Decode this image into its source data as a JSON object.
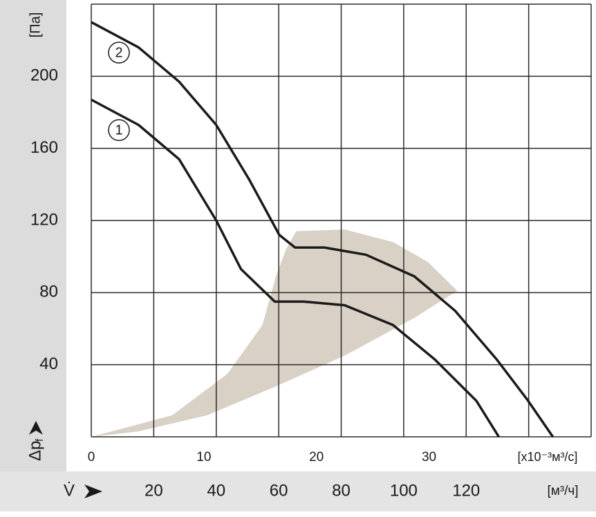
{
  "chart_data": {
    "type": "line",
    "y_label": "[Па]",
    "y_symbol": "Δp",
    "y_symbol_sub": "f",
    "x_label": "[x10⁻³м³/с]",
    "x2_symbol": "V̇",
    "x2_label": "[м³/ч]",
    "xlim": [
      0,
      44.4
    ],
    "xticks": [
      0,
      10,
      20,
      30
    ],
    "x2lim": [
      0,
      160
    ],
    "x2ticks": [
      20,
      40,
      60,
      80,
      100,
      120
    ],
    "x2grid": [
      20,
      40,
      60,
      80,
      100,
      120,
      140
    ],
    "ylim": [
      0,
      240
    ],
    "yticks": [
      40,
      80,
      120,
      160,
      200
    ],
    "grid": true,
    "series": [
      {
        "name": "1",
        "color": "#1a1a1a",
        "x": [
          0,
          4.2,
          7.8,
          11.1,
          13.3,
          16.3,
          18.9,
          22.5,
          26.8,
          30.5,
          34.2,
          36.2
        ],
        "values": [
          187,
          173,
          154,
          120,
          93,
          75,
          75,
          73,
          62,
          43,
          20,
          0
        ]
      },
      {
        "name": "2",
        "color": "#1a1a1a",
        "x": [
          0,
          4.2,
          7.8,
          11.1,
          14,
          16.7,
          18.1,
          20.7,
          24.4,
          28.7,
          32.3,
          36,
          38.8,
          41
        ],
        "values": [
          230,
          216,
          197,
          173,
          143,
          112,
          105,
          105,
          101,
          89,
          70,
          43,
          20,
          0
        ]
      }
    ],
    "area": {
      "color": "#d9d0c6",
      "x": [
        0,
        7.2,
        12.1,
        15.2,
        16.4,
        17.3,
        18.2,
        22.5,
        26.8,
        29.9,
        32.5,
        28.7,
        22.5,
        16.4,
        10.3,
        4.2,
        0
      ],
      "values": [
        0,
        12,
        35,
        62,
        89,
        104,
        114,
        115,
        108,
        97,
        81,
        66,
        45,
        28,
        12,
        3,
        0
      ]
    }
  }
}
